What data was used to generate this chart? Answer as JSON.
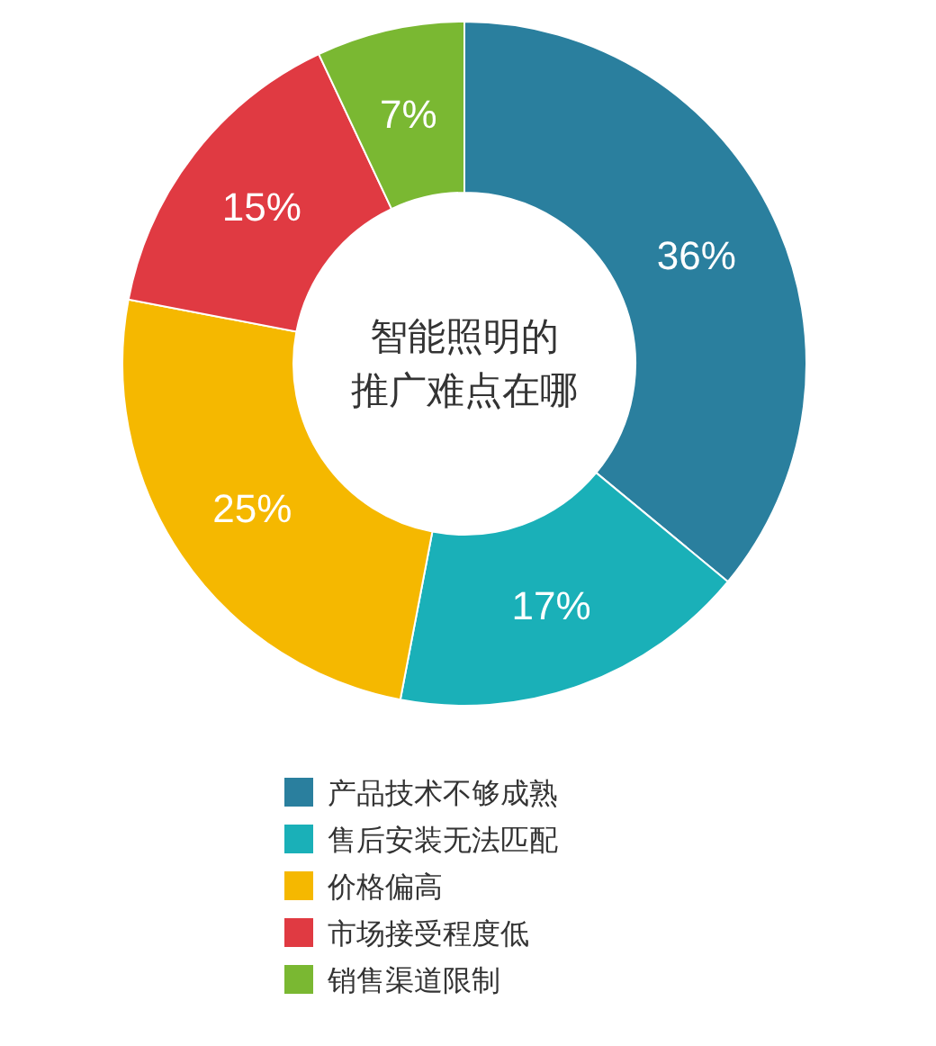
{
  "chart_data": {
    "type": "donut",
    "title": "智能照明的推广难点在哪",
    "categories": [
      "产品技术不够成熟",
      "售后安装无法匹配",
      "价格偏高",
      "市场接受程度低",
      "销售渠道限制"
    ],
    "values": [
      36,
      17,
      25,
      15,
      7
    ],
    "colors": [
      "#2a7f9e",
      "#1ab0b8",
      "#f5b800",
      "#e03a42",
      "#7ab832"
    ],
    "value_labels": [
      "36%",
      "17%",
      "25%",
      "15%",
      "7%"
    ],
    "legend": "bottom"
  }
}
